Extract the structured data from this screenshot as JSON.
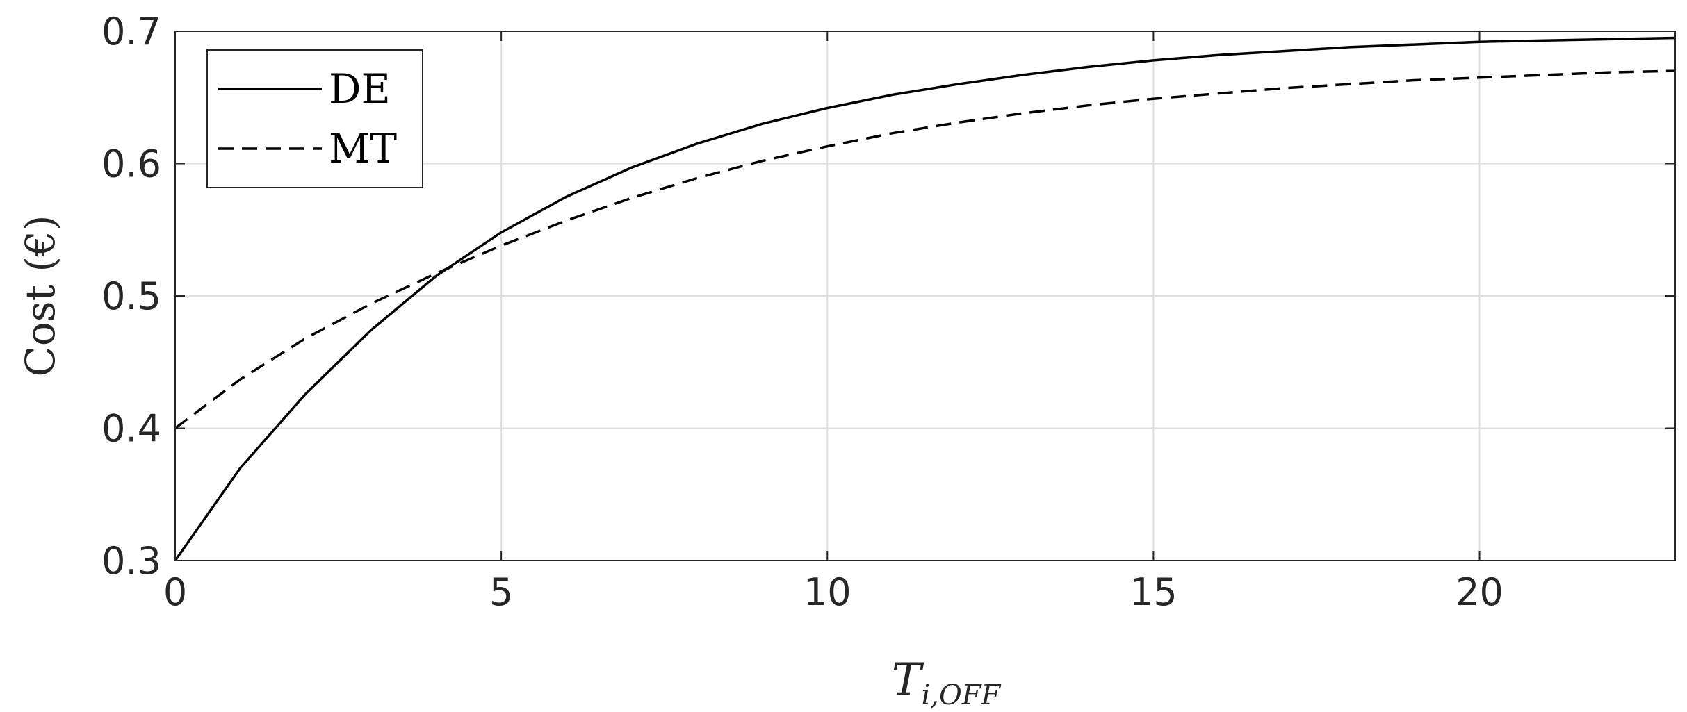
{
  "chart_data": {
    "type": "line",
    "title": "",
    "xlabel": {
      "main": "T",
      "sub": "i,OFF"
    },
    "ylabel": "Cost (€)",
    "xlim": [
      0,
      23
    ],
    "ylim": [
      0.3,
      0.7
    ],
    "x_ticks": [
      0,
      5,
      10,
      15,
      20
    ],
    "x_tick_labels": [
      "0",
      "5",
      "10",
      "15",
      "20"
    ],
    "y_ticks": [
      0.3,
      0.4,
      0.5,
      0.6,
      0.7
    ],
    "y_tick_labels": [
      "0.3",
      "0.4",
      "0.5",
      "0.6",
      "0.7"
    ],
    "grid": true,
    "legend_position": "top-left",
    "x": [
      0,
      1,
      2,
      3,
      4,
      5,
      6,
      7,
      8,
      9,
      10,
      11,
      12,
      13,
      14,
      15,
      16,
      17,
      18,
      19,
      20,
      21,
      22,
      23
    ],
    "series": [
      {
        "name": "DE",
        "style": "solid",
        "color": "#000000",
        "values": [
          0.3,
          0.37,
          0.426,
          0.474,
          0.515,
          0.548,
          0.575,
          0.597,
          0.615,
          0.63,
          0.642,
          0.652,
          0.66,
          0.667,
          0.673,
          0.678,
          0.682,
          0.685,
          0.688,
          0.69,
          0.692,
          0.693,
          0.694,
          0.695
        ]
      },
      {
        "name": "MT",
        "style": "dashed",
        "color": "#000000",
        "values": [
          0.4,
          0.437,
          0.468,
          0.494,
          0.517,
          0.538,
          0.557,
          0.574,
          0.589,
          0.602,
          0.613,
          0.623,
          0.631,
          0.638,
          0.644,
          0.649,
          0.653,
          0.657,
          0.66,
          0.663,
          0.665,
          0.667,
          0.669,
          0.67
        ]
      }
    ]
  }
}
